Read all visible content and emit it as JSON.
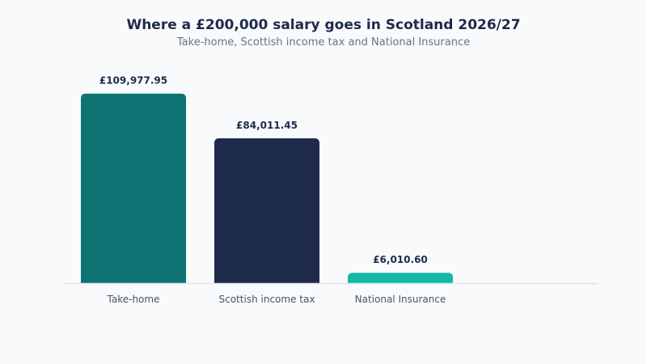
{
  "chart_data": {
    "type": "bar",
    "title": "Where a £200,000 salary goes in Scotland 2026/27",
    "subtitle": "Take-home, Scottish income tax and National Insurance",
    "categories": [
      "Take-home",
      "Scottish income tax",
      "National Insurance"
    ],
    "values": [
      109977.95,
      84011.45,
      6010.6
    ],
    "value_labels": [
      "£109,977.95",
      "£84,011.45",
      "£6,010.60"
    ],
    "colors": [
      "#0e7373",
      "#1e2a4a",
      "#14b8a6"
    ],
    "ylim": [
      0,
      115000
    ],
    "grid": false,
    "legend": "none"
  }
}
